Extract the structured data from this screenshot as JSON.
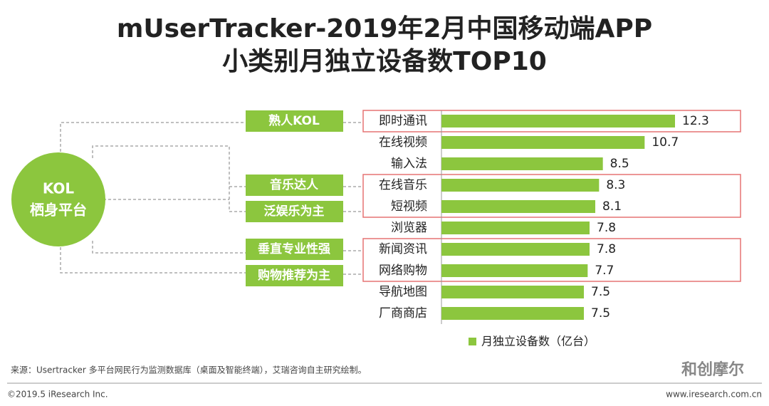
{
  "chart_data": {
    "type": "bar",
    "title_lines": [
      "mUserTracker-2019年2月中国移动端APP",
      "小类别月独立设备数TOP10"
    ],
    "categories": [
      "即时通讯",
      "在线视频",
      "输入法",
      "在线音乐",
      "短视频",
      "浏览器",
      "新闻资讯",
      "网络购物",
      "导航地图",
      "厂商商店"
    ],
    "series": [
      {
        "name": "月独立设备数（亿台）",
        "color": "#8cc63e",
        "values": [
          12.3,
          10.7,
          8.5,
          8.3,
          8.1,
          7.8,
          7.8,
          7.7,
          7.5,
          7.5
        ]
      }
    ],
    "kol_center": [
      "KOL",
      "栖身平台"
    ],
    "kol_tags": [
      "熟人KOL",
      "音乐达人",
      "泛娱乐为主",
      "垂直专业性强",
      "购物推荐为主"
    ],
    "source": "来源：Usertracker 多平台网民行为监测数据库（桌面及智能终端），艾瑞咨询自主研究绘制。",
    "copyright": "©2019.5 iResearch Inc.",
    "website": "www.iresearch.com.cn",
    "watermark": "和创摩尔"
  }
}
